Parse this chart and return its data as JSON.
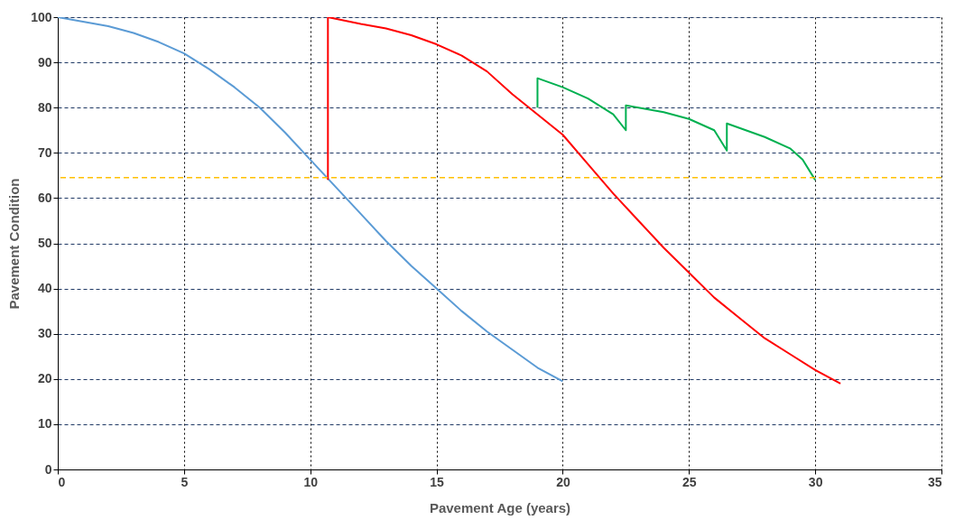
{
  "chart_data": {
    "type": "line",
    "xlabel": "Pavement Age (years)",
    "ylabel": "Pavement Condition",
    "xlim": [
      0,
      35
    ],
    "xticks": [
      0,
      5,
      10,
      15,
      20,
      25,
      30,
      35
    ],
    "ylim": [
      0,
      100
    ],
    "yticks": [
      0,
      10,
      20,
      30,
      40,
      50,
      60,
      70,
      80,
      90,
      100
    ],
    "grid": true,
    "marker": "none",
    "line_style": "solid",
    "series": [
      {
        "color": "#5b9bd5",
        "x": [
          0,
          1,
          2,
          3,
          4,
          5,
          6,
          7,
          8,
          9,
          10,
          11,
          12,
          13,
          14,
          15,
          16,
          17,
          18,
          19,
          20
        ],
        "values": [
          100,
          99,
          98,
          96.5,
          94.5,
          92,
          88.5,
          84.5,
          80,
          74.5,
          68.5,
          62.5,
          56.5,
          50.5,
          45,
          40,
          35,
          30.5,
          26.5,
          22.5,
          19.5
        ]
      },
      {
        "color": "#ff0000",
        "x": [
          10.7,
          10.7,
          12,
          13,
          14,
          15,
          16,
          17,
          18,
          19,
          20,
          21,
          22,
          23,
          24,
          25,
          26,
          27,
          28,
          29,
          30,
          31
        ],
        "values": [
          64,
          100,
          98.5,
          97.5,
          96,
          94,
          91.5,
          88,
          83,
          78.5,
          74,
          67.5,
          61,
          55,
          49,
          43.5,
          38,
          33.5,
          29,
          25.5,
          22,
          19
        ]
      },
      {
        "color": "#00b050",
        "x": [
          19,
          19,
          20,
          21,
          22,
          22.5,
          22.5,
          23,
          24,
          25,
          26,
          26.5,
          26.5,
          27,
          28,
          29,
          29.5,
          30
        ],
        "values": [
          80,
          86.5,
          84.5,
          82,
          78.5,
          75,
          80.5,
          80,
          79,
          77.5,
          75,
          70.5,
          76.5,
          75.5,
          73.5,
          71,
          68.5,
          64
        ]
      }
    ],
    "ref_lines": [
      {
        "axis": "y",
        "value": 64.5,
        "color": "#ffc000",
        "line_style": "dashed"
      }
    ]
  }
}
